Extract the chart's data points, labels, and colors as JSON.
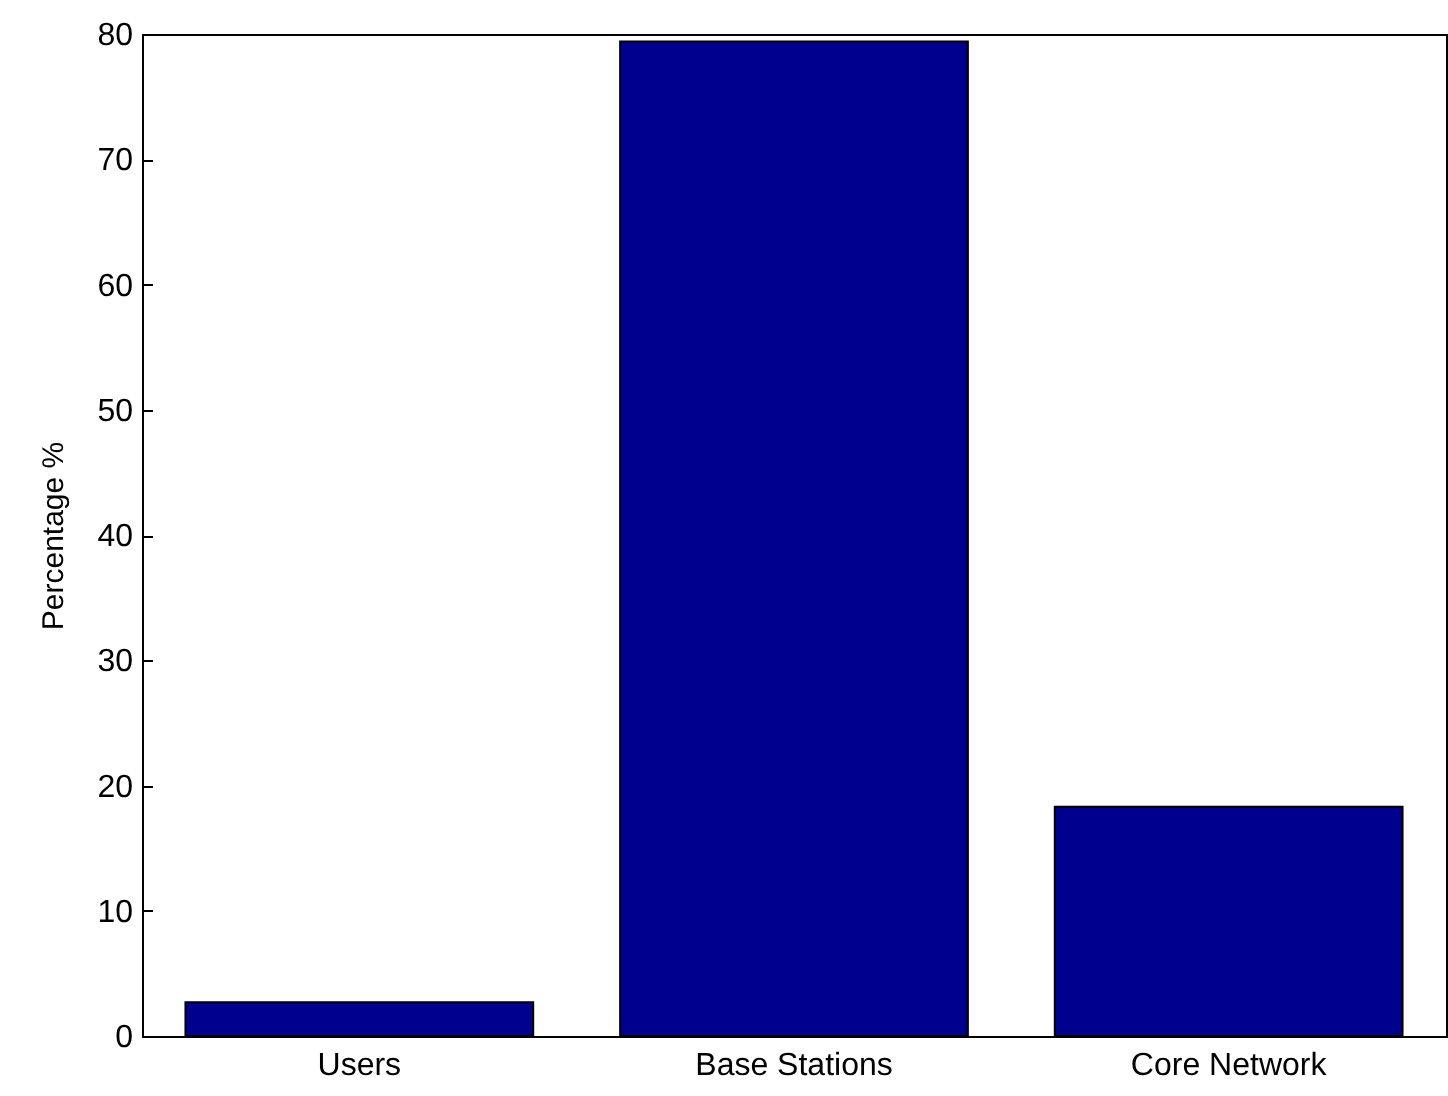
{
  "chart_data": {
    "type": "bar",
    "ylabel": "Percentage %",
    "categories": [
      "Users",
      "Base Stations",
      "Core Network"
    ],
    "values": [
      2.7,
      79.4,
      18.3
    ],
    "color": "#00008f",
    "ylim": [
      0,
      80
    ],
    "yticks": [
      0,
      10,
      20,
      30,
      40,
      50,
      60,
      70,
      80
    ],
    "grid": false
  }
}
